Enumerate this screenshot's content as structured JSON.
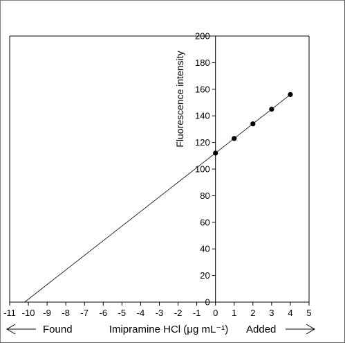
{
  "chart_data": {
    "type": "scatter",
    "title": "",
    "xlabel": "Imipramine HCl (μg mL⁻¹)",
    "ylabel": "Fluorescence intensity",
    "xlim": [
      -11,
      5
    ],
    "ylim": [
      0,
      200
    ],
    "x_ticks": [
      "-11",
      "-10",
      "-9",
      "-8",
      "-7",
      "-6",
      "-5",
      "-4",
      "-3",
      "-2",
      "-1",
      "0",
      "1",
      "2",
      "3",
      "4",
      "5"
    ],
    "y_ticks": [
      "0",
      "20",
      "40",
      "60",
      "80",
      "100",
      "120",
      "140",
      "160",
      "180",
      "200"
    ],
    "points": [
      {
        "x": 0,
        "y": 112
      },
      {
        "x": 1,
        "y": 123
      },
      {
        "x": 2,
        "y": 134
      },
      {
        "x": 3,
        "y": 145
      },
      {
        "x": 4,
        "y": 156
      }
    ],
    "fit_line": {
      "x": [
        -10.2,
        4
      ],
      "y": [
        0,
        156
      ]
    },
    "annotations": {
      "found": "Found",
      "added": "Added"
    },
    "grid": false,
    "legend": "none"
  }
}
